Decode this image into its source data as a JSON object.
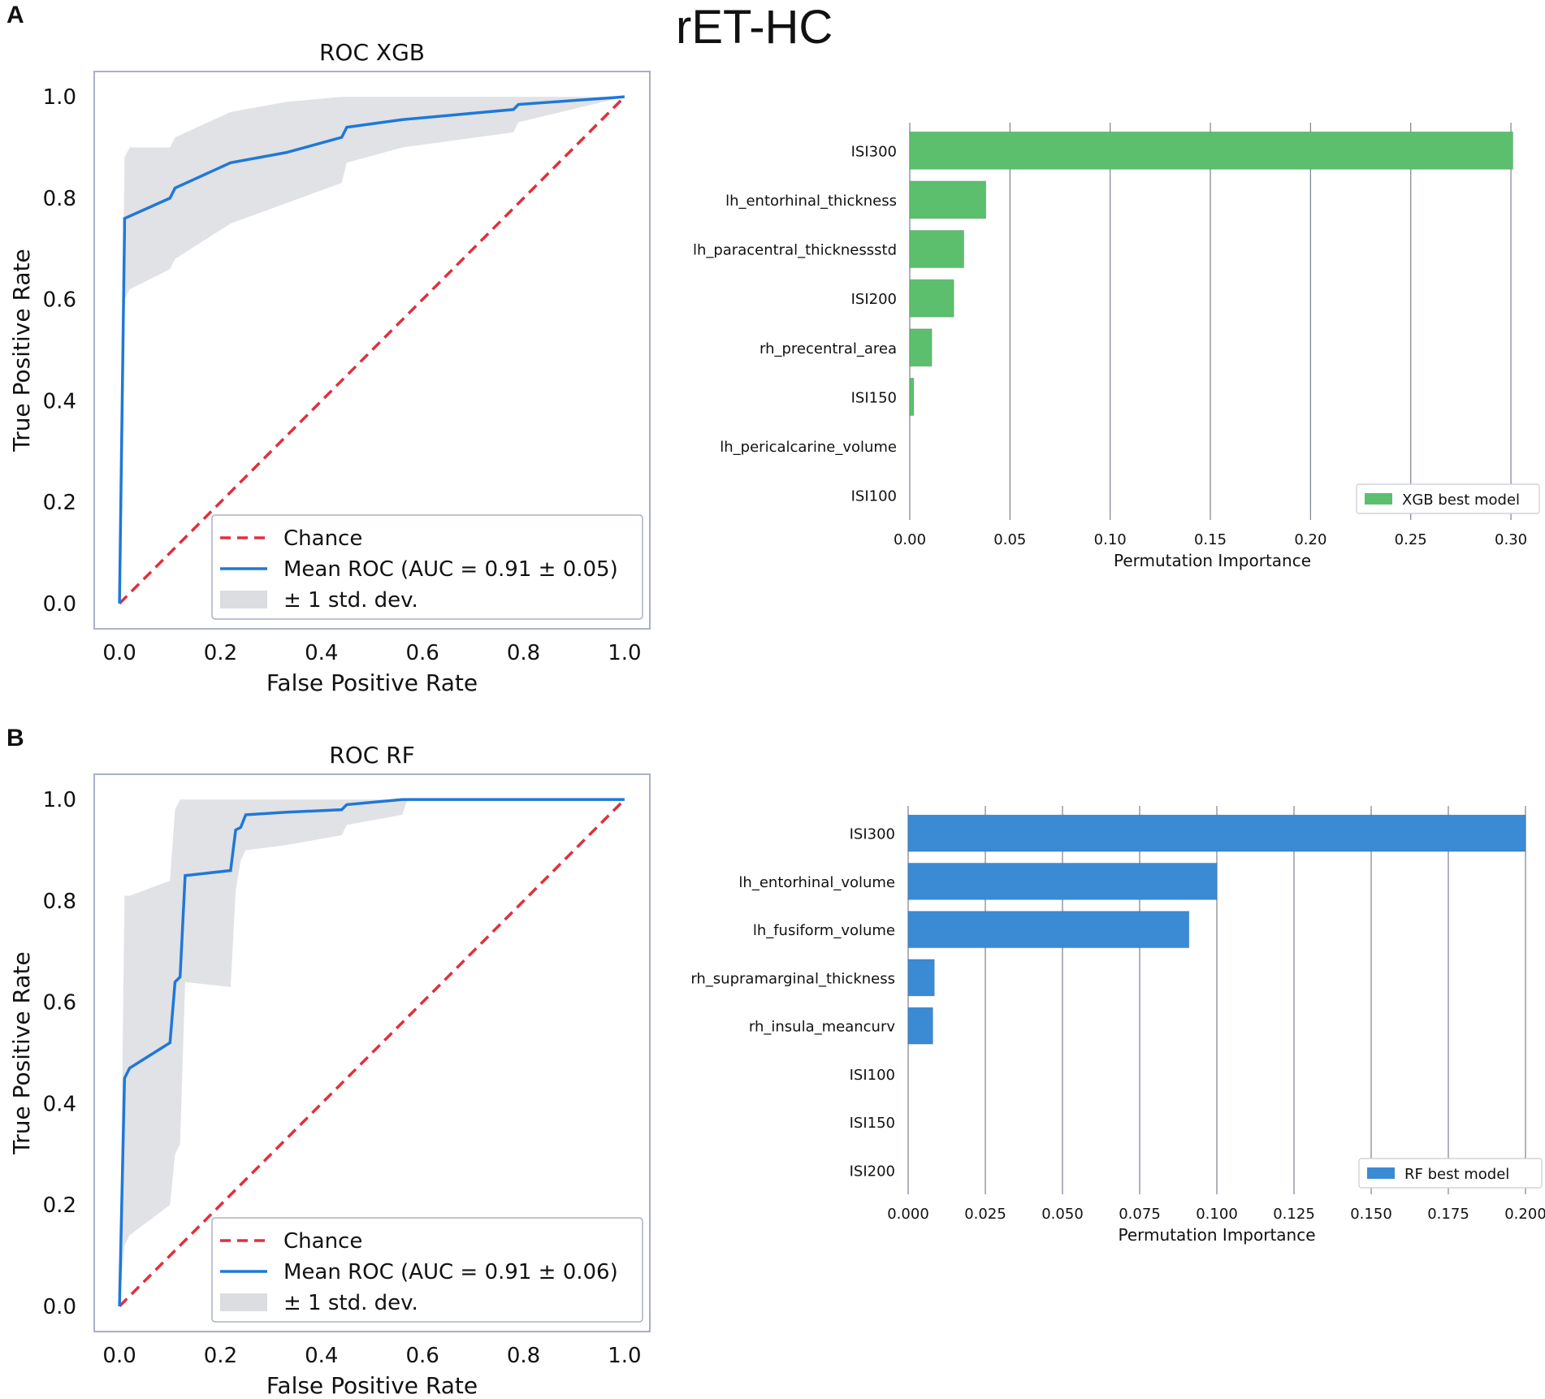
{
  "figure": {
    "title": "rET-HC",
    "panel_a_letter": "A",
    "panel_b_letter": "B"
  },
  "colors": {
    "roc_line": "#1f78d8",
    "chance_line": "#e0303a",
    "std_band": "#dcdde0",
    "xgb_bar": "#5cbf6e",
    "rf_bar": "#3b8bd4",
    "axis_frame": "#aab0c8",
    "grid": "#7a8190"
  },
  "chart_data": [
    {
      "id": "roc_xgb",
      "type": "line",
      "title": "ROC XGB",
      "xlabel": "False Positive Rate",
      "ylabel": "True Positive Rate",
      "xlim": [
        -0.05,
        1.05
      ],
      "ylim": [
        -0.05,
        1.05
      ],
      "xticks": [
        "0.0",
        "0.2",
        "0.4",
        "0.6",
        "0.8",
        "1.0"
      ],
      "yticks": [
        "0.0",
        "0.2",
        "0.4",
        "0.6",
        "0.8",
        "1.0"
      ],
      "series": [
        {
          "name": "Chance",
          "style": "dashed",
          "x": [
            0,
            1
          ],
          "y": [
            0,
            1
          ]
        },
        {
          "name": "Mean ROC (AUC = 0.91 ± 0.05)",
          "style": "solid",
          "x": [
            0.0,
            0.01,
            0.01,
            0.1,
            0.11,
            0.22,
            0.33,
            0.44,
            0.45,
            0.56,
            0.78,
            0.79,
            1.0
          ],
          "y": [
            0.0,
            0.74,
            0.76,
            0.8,
            0.82,
            0.87,
            0.89,
            0.92,
            0.94,
            0.955,
            0.975,
            0.985,
            1.0
          ]
        }
      ],
      "band": {
        "name": "± 1 std. dev.",
        "x": [
          0.0,
          0.01,
          0.02,
          0.1,
          0.11,
          0.22,
          0.33,
          0.44,
          0.45,
          0.56,
          0.78,
          0.79,
          1.0
        ],
        "lower": [
          0.0,
          0.6,
          0.62,
          0.66,
          0.68,
          0.75,
          0.79,
          0.83,
          0.87,
          0.9,
          0.93,
          0.95,
          1.0
        ],
        "upper": [
          0.0,
          0.88,
          0.9,
          0.9,
          0.92,
          0.97,
          0.99,
          1.0,
          1.0,
          1.0,
          1.0,
          1.0,
          1.0
        ]
      },
      "legend": {
        "position": "bottom-right",
        "entries": [
          "Chance",
          "Mean ROC (AUC = 0.91 ± 0.05)",
          "± 1 std. dev."
        ]
      }
    },
    {
      "id": "importance_xgb",
      "type": "bar",
      "orientation": "horizontal",
      "xlabel": "Permutation Importance",
      "xlim": [
        0.0,
        0.302
      ],
      "xticks": [
        0.0,
        0.05,
        0.1,
        0.15,
        0.2,
        0.25,
        0.3
      ],
      "xtick_labels": [
        "0.00",
        "0.05",
        "0.10",
        "0.15",
        "0.20",
        "0.25",
        "0.30"
      ],
      "categories": [
        "ISI300",
        "lh_entorhinal_thickness",
        "lh_paracentral_thicknessstd",
        "ISI200",
        "rh_precentral_area",
        "ISI150",
        "lh_pericalcarine_volume",
        "ISI100"
      ],
      "values": [
        0.301,
        0.038,
        0.027,
        0.022,
        0.011,
        0.002,
        0.0,
        0.0
      ],
      "legend": {
        "position": "bottom-right",
        "entries": [
          "XGB best model"
        ]
      }
    },
    {
      "id": "roc_rf",
      "type": "line",
      "title": "ROC RF",
      "xlabel": "False Positive Rate",
      "ylabel": "True Positive Rate",
      "xlim": [
        -0.05,
        1.05
      ],
      "ylim": [
        -0.05,
        1.05
      ],
      "xticks": [
        "0.0",
        "0.2",
        "0.4",
        "0.6",
        "0.8",
        "1.0"
      ],
      "yticks": [
        "0.0",
        "0.2",
        "0.4",
        "0.6",
        "0.8",
        "1.0"
      ],
      "series": [
        {
          "name": "Chance",
          "style": "dashed",
          "x": [
            0,
            1
          ],
          "y": [
            0,
            1
          ]
        },
        {
          "name": "Mean ROC (AUC = 0.91 ± 0.06)",
          "style": "solid",
          "x": [
            0.0,
            0.01,
            0.02,
            0.1,
            0.11,
            0.12,
            0.13,
            0.22,
            0.23,
            0.24,
            0.25,
            0.33,
            0.44,
            0.45,
            0.56,
            0.57,
            1.0
          ],
          "y": [
            0.0,
            0.45,
            0.47,
            0.52,
            0.64,
            0.65,
            0.85,
            0.86,
            0.94,
            0.945,
            0.97,
            0.975,
            0.98,
            0.99,
            1.0,
            1.0,
            1.0
          ]
        }
      ],
      "band": {
        "name": "± 1 std. dev.",
        "x": [
          0.0,
          0.01,
          0.02,
          0.1,
          0.11,
          0.12,
          0.13,
          0.22,
          0.23,
          0.24,
          0.25,
          0.33,
          0.44,
          0.45,
          0.56,
          0.57,
          1.0
        ],
        "lower": [
          0.0,
          0.12,
          0.14,
          0.2,
          0.3,
          0.32,
          0.64,
          0.63,
          0.82,
          0.88,
          0.9,
          0.91,
          0.93,
          0.95,
          0.97,
          1.0,
          1.0
        ],
        "upper": [
          0.0,
          0.81,
          0.81,
          0.84,
          0.98,
          1.0,
          1.0,
          1.0,
          1.0,
          1.0,
          1.0,
          1.0,
          1.0,
          1.0,
          1.0,
          1.0,
          1.0
        ]
      },
      "legend": {
        "position": "bottom-right",
        "entries": [
          "Chance",
          "Mean ROC (AUC = 0.91 ± 0.06)",
          "± 1 std. dev."
        ]
      }
    },
    {
      "id": "importance_rf",
      "type": "bar",
      "orientation": "horizontal",
      "xlabel": "Permutation Importance",
      "xlim": [
        0.0,
        0.2
      ],
      "xticks": [
        0.0,
        0.025,
        0.05,
        0.075,
        0.1,
        0.125,
        0.15,
        0.175,
        0.2
      ],
      "xtick_labels": [
        "0.000",
        "0.025",
        "0.050",
        "0.075",
        "0.100",
        "0.125",
        "0.150",
        "0.175",
        "0.200"
      ],
      "categories": [
        "ISI300",
        "lh_entorhinal_volume",
        "lh_fusiform_volume",
        "rh_supramarginal_thickness",
        "rh_insula_meancurv",
        "ISI100",
        "ISI150",
        "ISI200"
      ],
      "values": [
        0.2,
        0.1,
        0.091,
        0.0085,
        0.008,
        0.0,
        0.0,
        0.0
      ],
      "legend": {
        "position": "bottom-right",
        "entries": [
          "RF best model"
        ]
      }
    }
  ]
}
